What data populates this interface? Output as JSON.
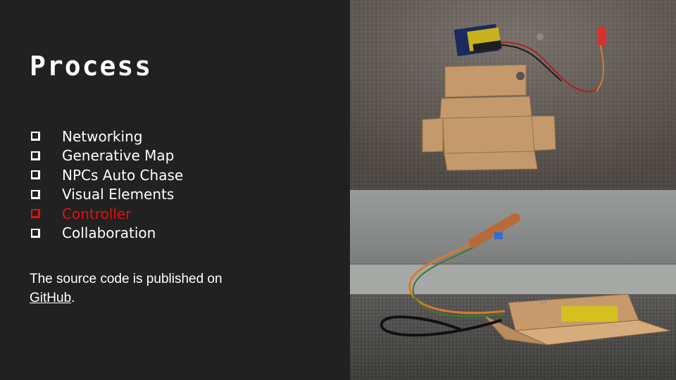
{
  "slide": {
    "title": "Process",
    "checklist": [
      {
        "label": "Networking",
        "highlighted": false
      },
      {
        "label": "Generative Map",
        "highlighted": false
      },
      {
        "label": "NPCs Auto Chase",
        "highlighted": false
      },
      {
        "label": "Visual Elements",
        "highlighted": false
      },
      {
        "label": "Controller",
        "highlighted": true
      },
      {
        "label": "Collaboration",
        "highlighted": false
      }
    ],
    "source_note": {
      "text_before": "The source code is published on",
      "link_text": "GitHub",
      "text_after": "."
    }
  },
  "colors": {
    "background": "#212121",
    "text": "#ffffff",
    "highlight": "#e01010",
    "cardboard": "#c49a6c"
  },
  "icons": {
    "checkbox": "empty-checkbox-icon"
  }
}
